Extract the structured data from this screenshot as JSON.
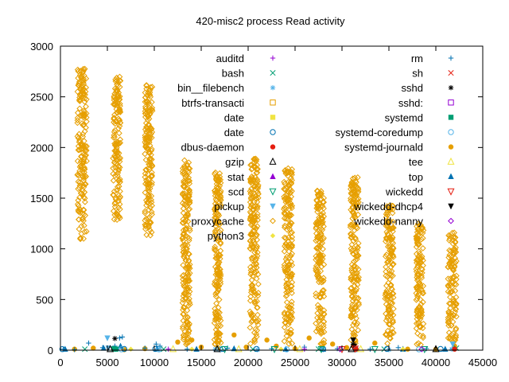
{
  "chart_data": {
    "type": "scatter",
    "title": "420-misc2 process Read activity",
    "xlabel": "",
    "ylabel": "",
    "xlim": [
      0,
      45000
    ],
    "ylim": [
      0,
      3000
    ],
    "xticks": [
      "0",
      "5000",
      "10000",
      "15000",
      "20000",
      "25000",
      "30000",
      "35000",
      "40000",
      "45000"
    ],
    "yticks": [
      "0",
      "500",
      "1000",
      "1500",
      "2000",
      "2500",
      "3000"
    ],
    "grid": false,
    "legend_position": "top-right, two columns",
    "legend": [
      {
        "name": "auditd",
        "marker": "plus",
        "color": "#9400d3"
      },
      {
        "name": "bash",
        "marker": "cross",
        "color": "#009e73"
      },
      {
        "name": "bin__filebench",
        "marker": "asterisk",
        "color": "#56b4e9"
      },
      {
        "name": "btrfs-transacti",
        "marker": "square-open",
        "color": "#e69f00"
      },
      {
        "name": "date",
        "marker": "square-filled",
        "color": "#f0e442"
      },
      {
        "name": "date",
        "marker": "circle-open",
        "color": "#0072b2"
      },
      {
        "name": "dbus-daemon",
        "marker": "circle-filled",
        "color": "#e51e10"
      },
      {
        "name": "gzip",
        "marker": "triangle-open",
        "color": "#000000"
      },
      {
        "name": "stat",
        "marker": "triangle-filled",
        "color": "#9400d3"
      },
      {
        "name": "scd",
        "marker": "triangle-down-open",
        "color": "#009e73"
      },
      {
        "name": "pickup",
        "marker": "triangle-down-filled",
        "color": "#56b4e9"
      },
      {
        "name": "proxycache",
        "marker": "diamond-open",
        "color": "#e69f00"
      },
      {
        "name": "python3",
        "marker": "diamond-filled",
        "color": "#f0e442"
      },
      {
        "name": "rm",
        "marker": "plus",
        "color": "#0072b2"
      },
      {
        "name": "sh",
        "marker": "cross",
        "color": "#e51e10"
      },
      {
        "name": "sshd",
        "marker": "asterisk",
        "color": "#000000"
      },
      {
        "name": "sshd:",
        "marker": "square-open",
        "color": "#9400d3"
      },
      {
        "name": "systemd",
        "marker": "square-filled",
        "color": "#009e73"
      },
      {
        "name": "systemd-coredump",
        "marker": "circle-open",
        "color": "#56b4e9"
      },
      {
        "name": "systemd-journald",
        "marker": "circle-filled",
        "color": "#e69f00"
      },
      {
        "name": "tee",
        "marker": "triangle-open",
        "color": "#f0e442"
      },
      {
        "name": "top",
        "marker": "triangle-filled",
        "color": "#0072b2"
      },
      {
        "name": "wickedd",
        "marker": "triangle-down-open",
        "color": "#e51e10"
      },
      {
        "name": "wickedd-dhcp4",
        "marker": "triangle-down-filled",
        "color": "#000000"
      },
      {
        "name": "wickedd-nanny",
        "marker": "diamond-open",
        "color": "#9400d3"
      }
    ],
    "series": [
      {
        "name": "proxycache",
        "marker": "diamond-open",
        "color": "#e69f00",
        "description": "dense vertical bursts of read activity",
        "clusters": [
          {
            "x_range": [
              1800,
              2800
            ],
            "y_range": [
              1080,
              2780
            ]
          },
          {
            "x_range": [
              5600,
              6400
            ],
            "y_range": [
              1270,
              2700
            ]
          },
          {
            "x_range": [
              9000,
              9800
            ],
            "y_range": [
              1130,
              2650
            ]
          },
          {
            "x_range": [
              13000,
              13800
            ],
            "y_range": [
              50,
              1880
            ]
          },
          {
            "x_range": [
              16400,
              17100
            ],
            "y_range": [
              50,
              1760
            ]
          },
          {
            "x_range": [
              20200,
              21100
            ],
            "y_range": [
              50,
              1890
            ]
          },
          {
            "x_range": [
              23800,
              24700
            ],
            "y_range": [
              50,
              1800
            ]
          },
          {
            "x_range": [
              27200,
              28100
            ],
            "y_range": [
              50,
              1580
            ]
          },
          {
            "x_range": [
              30900,
              31800
            ],
            "y_range": [
              50,
              1710
            ]
          },
          {
            "x_range": [
              34600,
              35500
            ],
            "y_range": [
              50,
              1430
            ]
          },
          {
            "x_range": [
              37900,
              38700
            ],
            "y_range": [
              50,
              1250
            ]
          },
          {
            "x_range": [
              41300,
              42200
            ],
            "y_range": [
              50,
              1160
            ]
          }
        ]
      },
      {
        "name": "systemd-journald",
        "marker": "circle-filled",
        "color": "#e69f00",
        "points": [
          [
            1500,
            10
          ],
          [
            3500,
            20
          ],
          [
            6800,
            5
          ],
          [
            9000,
            15
          ],
          [
            12500,
            80
          ],
          [
            14000,
            100
          ],
          [
            15000,
            30
          ],
          [
            16800,
            20
          ],
          [
            18500,
            150
          ],
          [
            19800,
            30
          ],
          [
            22000,
            100
          ],
          [
            23000,
            40
          ],
          [
            25000,
            15
          ],
          [
            26500,
            120
          ],
          [
            29000,
            60
          ],
          [
            30500,
            25
          ],
          [
            31200,
            40
          ],
          [
            33500,
            70
          ],
          [
            37000,
            10
          ],
          [
            40000,
            10
          ],
          [
            42000,
            40
          ]
        ]
      },
      {
        "name": "rm",
        "marker": "plus",
        "color": "#0072b2",
        "points": [
          [
            300,
            10
          ],
          [
            1500,
            5
          ],
          [
            3000,
            70
          ],
          [
            4500,
            25
          ],
          [
            5800,
            40
          ],
          [
            6300,
            120
          ],
          [
            6600,
            130
          ],
          [
            9000,
            20
          ],
          [
            10200,
            60
          ],
          [
            10600,
            40
          ],
          [
            13500,
            10
          ],
          [
            17800,
            20
          ],
          [
            22500,
            15
          ],
          [
            26000,
            30
          ],
          [
            29500,
            15
          ],
          [
            33000,
            10
          ],
          [
            36000,
            25
          ],
          [
            39000,
            15
          ],
          [
            41800,
            15
          ]
        ]
      },
      {
        "name": "top",
        "marker": "triangle-filled",
        "color": "#0072b2",
        "points": [
          [
            500,
            10
          ],
          [
            4600,
            20
          ],
          [
            6400,
            40
          ],
          [
            10300,
            15
          ],
          [
            14500,
            10
          ],
          [
            18500,
            15
          ],
          [
            24000,
            10
          ],
          [
            28000,
            10
          ],
          [
            31500,
            15
          ],
          [
            36500,
            10
          ],
          [
            41000,
            10
          ]
        ]
      },
      {
        "name": "pickup",
        "marker": "triangle-down-filled",
        "color": "#56b4e9",
        "points": [
          [
            5000,
            120
          ],
          [
            5100,
            20
          ],
          [
            41800,
            60
          ]
        ]
      },
      {
        "name": "sshd",
        "marker": "asterisk",
        "color": "#000000",
        "points": [
          [
            5800,
            115
          ],
          [
            31200,
            60
          ]
        ]
      },
      {
        "name": "wickedd-dhcp4",
        "marker": "triangle-down-filled",
        "color": "#000000",
        "points": [
          [
            31200,
            100
          ],
          [
            31300,
            40
          ]
        ]
      },
      {
        "name": "bash",
        "marker": "cross",
        "color": "#009e73",
        "points": [
          [
            2600,
            10
          ],
          [
            6100,
            10
          ],
          [
            11000,
            10
          ],
          [
            20500,
            10
          ],
          [
            27500,
            10
          ],
          [
            34500,
            10
          ],
          [
            42200,
            20
          ]
        ]
      },
      {
        "name": "bin__filebench",
        "marker": "asterisk",
        "color": "#56b4e9",
        "points": [
          [
            6000,
            15
          ],
          [
            10400,
            10
          ],
          [
            16500,
            10
          ],
          [
            21000,
            5
          ],
          [
            28000,
            5
          ],
          [
            35000,
            5
          ],
          [
            41700,
            10
          ]
        ]
      },
      {
        "name": "systemd",
        "marker": "square-filled",
        "color": "#009e73",
        "points": [
          [
            5700,
            15
          ],
          [
            5900,
            10
          ]
        ]
      },
      {
        "name": "systemd-coredump",
        "marker": "circle-open",
        "color": "#56b4e9",
        "points": [
          [
            6500,
            8
          ],
          [
            10500,
            8
          ],
          [
            17000,
            8
          ],
          [
            24100,
            8
          ],
          [
            31500,
            8
          ],
          [
            38200,
            8
          ]
        ]
      },
      {
        "name": "date",
        "marker": "circle-open",
        "color": "#0072b2",
        "points": [
          [
            200,
            10
          ],
          [
            6800,
            12
          ],
          [
            10100,
            12
          ],
          [
            17300,
            12
          ],
          [
            20900,
            12
          ],
          [
            28000,
            12
          ],
          [
            34800,
            12
          ],
          [
            40500,
            12
          ]
        ]
      },
      {
        "name": "gzip",
        "marker": "triangle-open",
        "color": "#000000",
        "points": [
          [
            5300,
            10
          ],
          [
            16700,
            10
          ],
          [
            31000,
            10
          ],
          [
            40000,
            10
          ]
        ]
      },
      {
        "name": "scd",
        "marker": "triangle-down-open",
        "color": "#009e73",
        "points": [
          [
            17500,
            10
          ],
          [
            22800,
            10
          ],
          [
            27800,
            10
          ],
          [
            33500,
            10
          ],
          [
            38800,
            10
          ]
        ]
      },
      {
        "name": "wickedd",
        "marker": "triangle-down-open",
        "color": "#e51e10",
        "points": [
          [
            30000,
            10
          ],
          [
            31400,
            15
          ]
        ]
      },
      {
        "name": "dbus-daemon",
        "marker": "circle-filled",
        "color": "#e51e10",
        "points": [
          [
            31500,
            10
          ],
          [
            42000,
            10
          ]
        ]
      },
      {
        "name": "auditd",
        "marker": "plus",
        "color": "#9400d3",
        "points": [
          [
            11500,
            10
          ],
          [
            26000,
            10
          ]
        ]
      },
      {
        "name": "python3",
        "marker": "diamond-filled",
        "color": "#f0e442",
        "points": [
          [
            7500,
            10
          ],
          [
            14000,
            10
          ],
          [
            23500,
            10
          ],
          [
            36500,
            10
          ]
        ]
      },
      {
        "name": "tee",
        "marker": "triangle-open",
        "color": "#f0e442",
        "points": [
          [
            12000,
            10
          ],
          [
            19000,
            10
          ],
          [
            25500,
            10
          ],
          [
            32000,
            10
          ]
        ]
      },
      {
        "name": "wickedd-nanny",
        "marker": "diamond-open",
        "color": "#9400d3",
        "points": [
          [
            29800,
            10
          ],
          [
            38500,
            10
          ]
        ]
      }
    ]
  }
}
